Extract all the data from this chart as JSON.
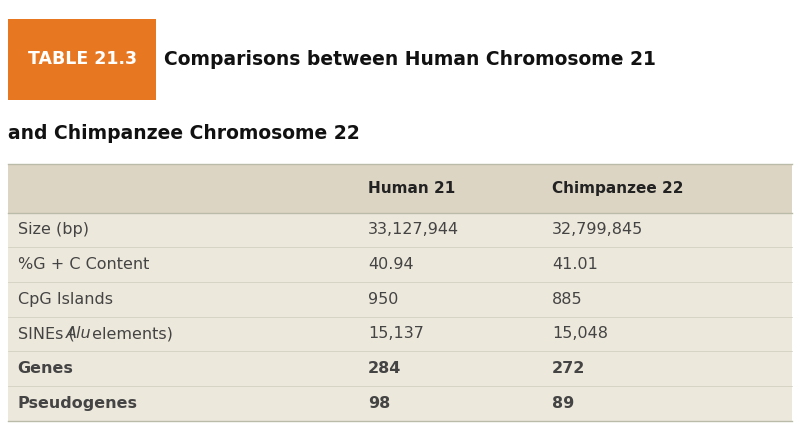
{
  "title_label": "TABLE 21.3",
  "col_headers": [
    "",
    "Human 21",
    "Chimpanzee 22"
  ],
  "rows": [
    [
      "Size (bp)",
      "33,127,944",
      "32,799,845"
    ],
    [
      "%G + C Content",
      "40.94",
      "41.01"
    ],
    [
      "CpG Islands",
      "950",
      "885"
    ],
    [
      "SINEs (Alu elements)",
      "15,137",
      "15,048"
    ],
    [
      "Genes",
      "284",
      "272"
    ],
    [
      "Pseudogenes",
      "98",
      "89"
    ]
  ],
  "title_box_color": "#E87722",
  "title_label_color": "#FFFFFF",
  "header_bg_color": "#DDD5C4",
  "row_bg_color": "#EDE8DC",
  "text_color": "#444444",
  "header_text_color": "#222222",
  "title_main_color": "#111111",
  "fig_bg_color": "#FFFFFF",
  "title_line1": "Comparisons between Human Chromosome 21",
  "title_line2": "and Chimpanzee Chromosome 22",
  "fig_width": 8.0,
  "fig_height": 4.25,
  "dpi": 100
}
